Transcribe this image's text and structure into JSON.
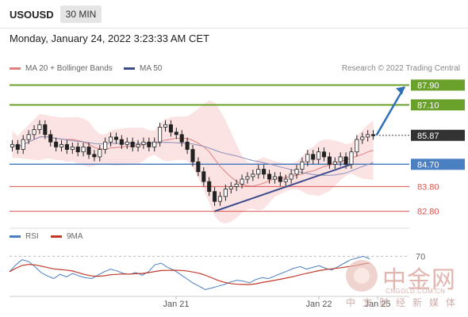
{
  "header": {
    "symbol": "USOUSD",
    "timeframe": "30 MIN",
    "datetime": "Monday, January 24, 2022 3:23:33 AM CET"
  },
  "legend": {
    "ma20": "MA 20 + Bollinger Bands",
    "ma50": "MA 50",
    "rsi": "RSI",
    "rsi_ma": "9MA"
  },
  "copyright": "Research © 2022 Trading Central",
  "watermark": {
    "title": "中金网",
    "url": "CNGOLD.COM.CN",
    "subtitle": "中文财经新媒体"
  },
  "colors": {
    "green_level": "#6aa12b",
    "blue_level": "#4a7fc1",
    "red_level": "#d9534f",
    "price_badge": "#333333",
    "trend_line": "#3d4a8c",
    "arrow": "#2f6fb5",
    "bollinger_fill": "#f9d0d0",
    "ma20": "#e08080",
    "ma50": "#8a8fb8",
    "rsi": "#4a7fc1",
    "rsi_ma": "#c0392b",
    "candle_up": "#ffffff",
    "candle_down": "#222222"
  },
  "chart_data": {
    "type": "candlestick",
    "timeframe": "30 MIN",
    "x_tick_labels": [
      "Jan 21",
      "Jan 22",
      "Jan 25"
    ],
    "y_range": [
      82.5,
      88.2
    ],
    "levels": [
      {
        "value": 87.9,
        "label": "87.90",
        "kind": "resistance"
      },
      {
        "value": 87.1,
        "label": "87.10",
        "kind": "resistance"
      },
      {
        "value": 85.87,
        "label": "85.87",
        "kind": "current"
      },
      {
        "value": 84.7,
        "label": "84.70",
        "kind": "pivot"
      },
      {
        "value": 83.8,
        "label": "83.80",
        "kind": "support"
      },
      {
        "value": 82.8,
        "label": "82.80",
        "kind": "support"
      }
    ],
    "candles_close": [
      85.5,
      85.3,
      85.7,
      85.9,
      86.1,
      86.3,
      85.9,
      85.6,
      85.4,
      85.5,
      85.3,
      85.4,
      85.2,
      85.4,
      85.1,
      85.0,
      85.3,
      85.6,
      85.8,
      85.7,
      85.5,
      85.6,
      85.4,
      85.5,
      85.6,
      85.4,
      85.6,
      86.2,
      86.3,
      86.0,
      85.9,
      85.6,
      85.3,
      84.8,
      84.4,
      84.0,
      83.6,
      83.2,
      83.4,
      83.7,
      83.8,
      83.9,
      84.1,
      84.2,
      84.3,
      84.5,
      84.3,
      84.1,
      84.2,
      84.0,
      84.1,
      84.3,
      84.5,
      84.8,
      85.1,
      84.9,
      85.2,
      85.0,
      84.7,
      84.8,
      85.0,
      84.7,
      85.2,
      85.7,
      85.8,
      85.9,
      85.87
    ],
    "trend_line": {
      "from": 82.8,
      "to": 84.7
    },
    "projection_target": 87.9,
    "rsi": {
      "level": 70,
      "level_label": "70",
      "values": [
        52,
        60,
        66,
        64,
        58,
        51,
        47,
        44,
        49,
        46,
        50,
        47,
        45,
        44,
        48,
        52,
        55,
        53,
        50,
        49,
        51,
        48,
        52,
        60,
        62,
        57,
        54,
        49,
        44,
        39,
        35,
        31,
        33,
        35,
        37,
        40,
        42,
        41,
        39,
        43,
        45,
        44,
        47,
        50,
        53,
        56,
        58,
        55,
        57,
        59,
        56,
        54,
        58,
        62,
        66,
        68,
        70,
        67
      ]
    }
  }
}
